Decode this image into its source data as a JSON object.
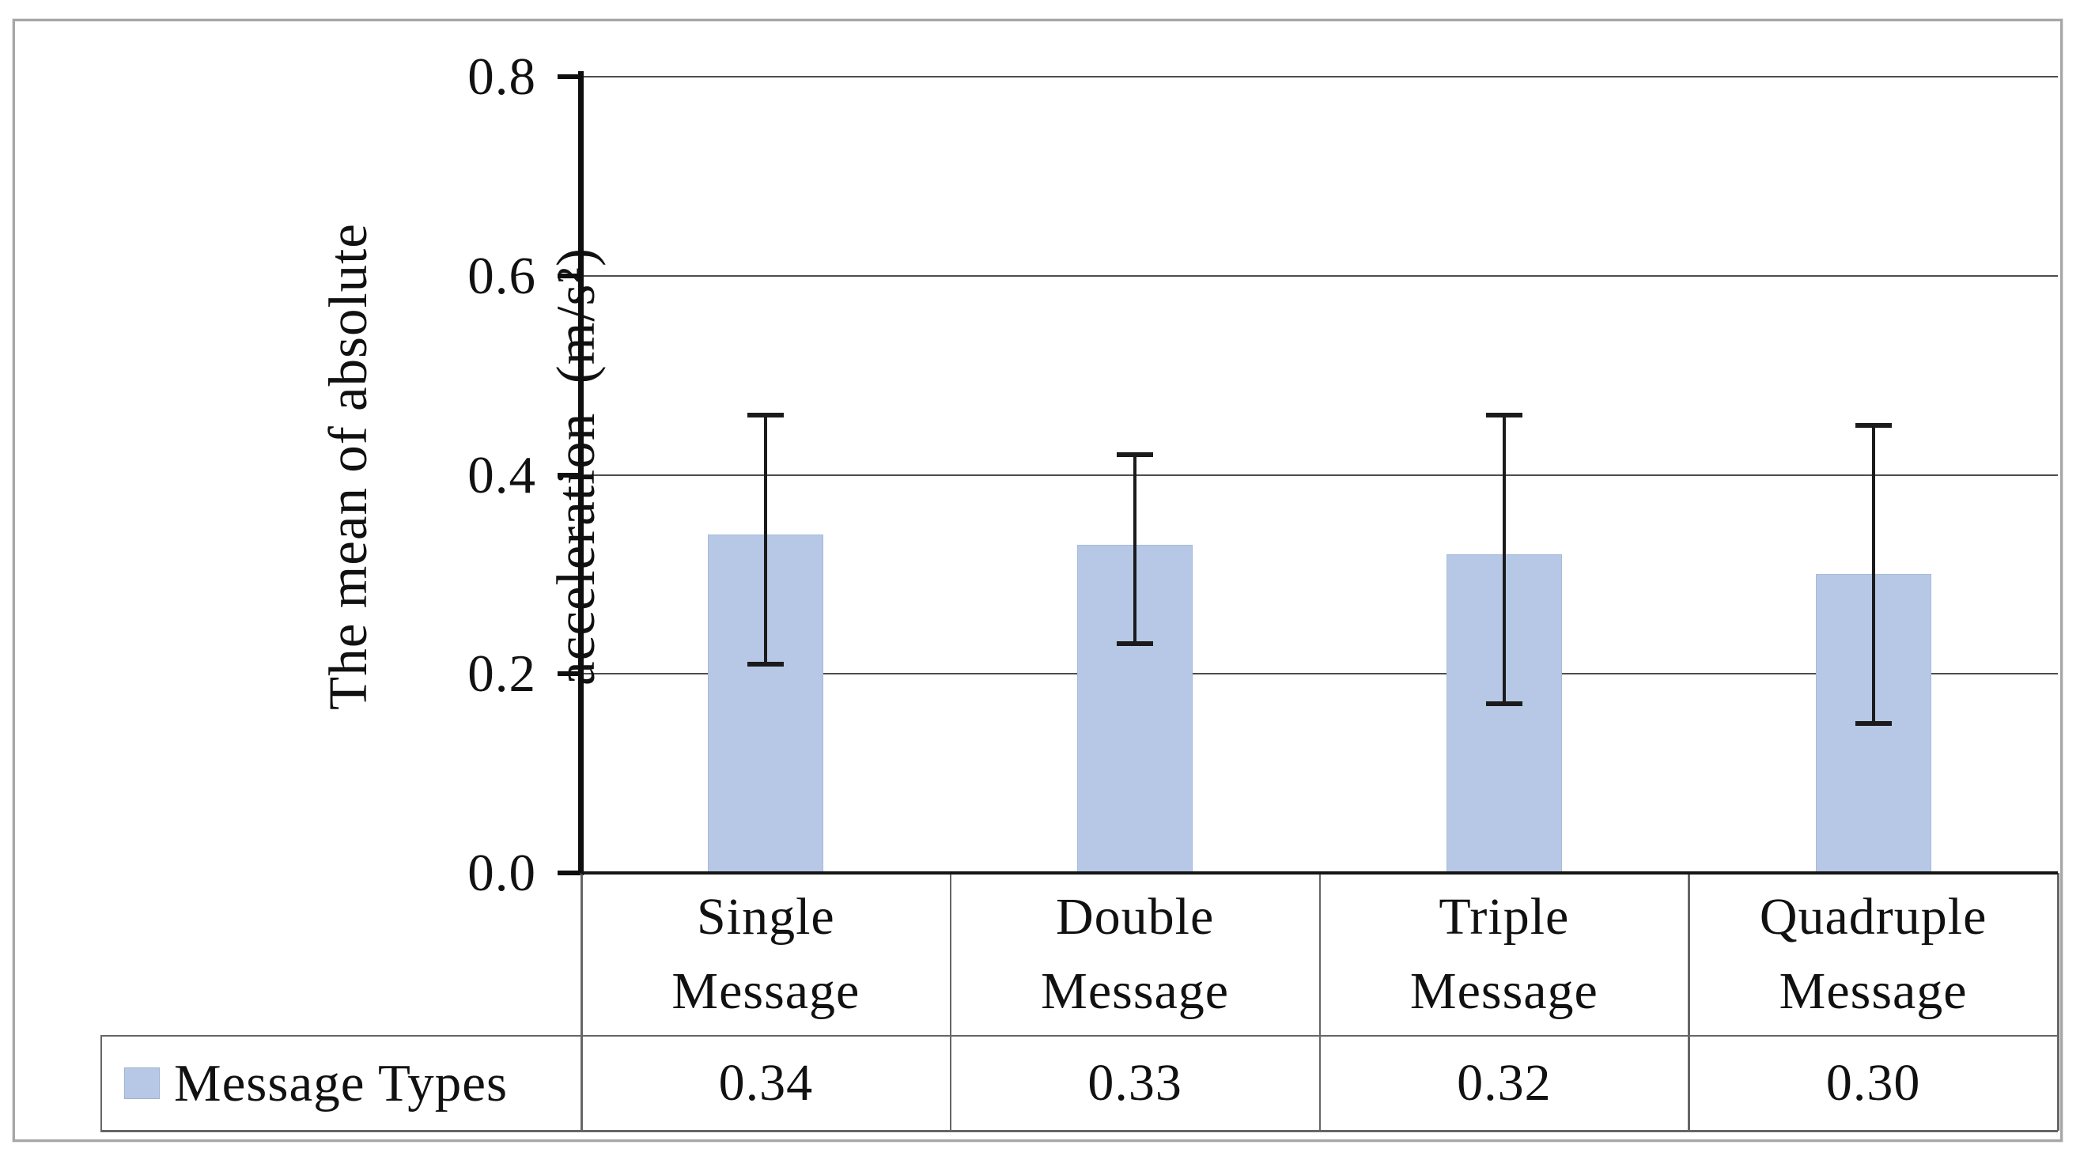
{
  "y_axis": {
    "title_line1": "The mean of absolute",
    "title_line2": "acceleration  (m/s²)",
    "tick_labels": [
      "0.8",
      "0.6",
      "0.4",
      "0.2",
      "0.0"
    ]
  },
  "chart_data": {
    "type": "bar",
    "categories": [
      "Single Message",
      "Double Message",
      "Triple Message",
      "Quadruple Message"
    ],
    "category_lines": [
      [
        "Single",
        "Message"
      ],
      [
        "Double",
        "Message"
      ],
      [
        "Triple",
        "Message"
      ],
      [
        "Quadruple",
        "Message"
      ]
    ],
    "series": [
      {
        "name": "Message Types",
        "values": [
          0.34,
          0.33,
          0.32,
          0.3
        ]
      }
    ],
    "value_labels": [
      "0.34",
      "0.33",
      "0.32",
      "0.30"
    ],
    "error_low": [
      0.21,
      0.23,
      0.17,
      0.15
    ],
    "error_high": [
      0.46,
      0.42,
      0.46,
      0.45
    ],
    "ylabel": "The mean of absolute acceleration (m/s²)",
    "ylim": [
      0,
      0.8
    ],
    "ytick_step": 0.2,
    "grid": true,
    "legend_position": "bottom-table",
    "bar_color": "#b6c8e6"
  },
  "data_table": {
    "legend_label": "Message Types",
    "rows": [
      {
        "label": "Message Types",
        "values": [
          "0.34",
          "0.33",
          "0.32",
          "0.30"
        ]
      }
    ]
  }
}
